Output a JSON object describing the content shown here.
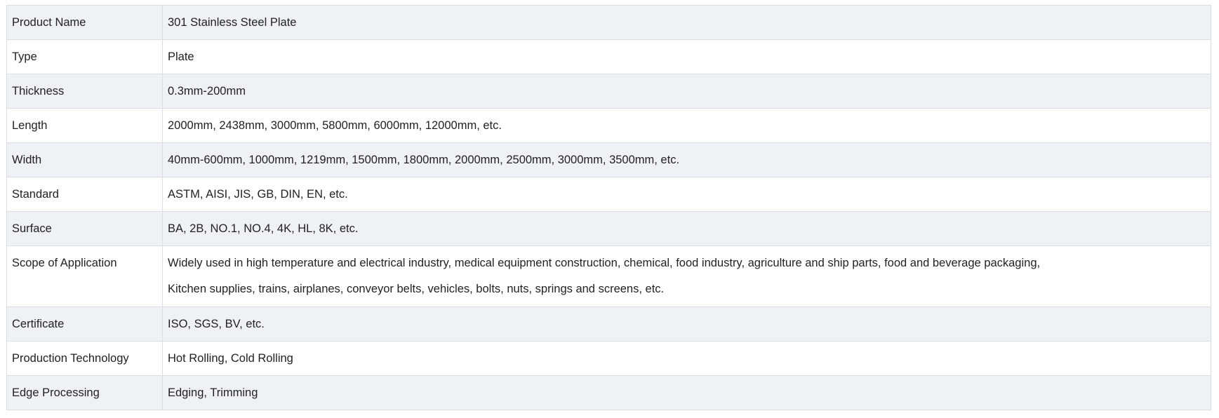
{
  "rows": [
    {
      "label": "Product Name",
      "value": "301 Stainless Steel Plate"
    },
    {
      "label": "Type",
      "value": "Plate"
    },
    {
      "label": "Thickness",
      "value": "0.3mm-200mm"
    },
    {
      "label": "Length",
      "value": "2000mm, 2438mm, 3000mm, 5800mm, 6000mm, 12000mm, etc."
    },
    {
      "label": "Width",
      "value": "40mm-600mm, 1000mm, 1219mm, 1500mm, 1800mm, 2000mm, 2500mm, 3000mm, 3500mm, etc."
    },
    {
      "label": "Standard",
      "value": "ASTM, AISI, JIS, GB, DIN, EN, etc."
    },
    {
      "label": "Surface",
      "value": "BA, 2B, NO.1, NO.4, 4K, HL, 8K, etc."
    },
    {
      "label": "Scope of Application",
      "lines": [
        "Widely used in high temperature and electrical industry, medical equipment construction, chemical, food industry, agriculture and ship parts, food and beverage packaging,",
        "Kitchen supplies, trains, airplanes, conveyor belts, vehicles, bolts, nuts, springs and screens, etc."
      ]
    },
    {
      "label": "Certificate",
      "value": "ISO, SGS, BV, etc."
    },
    {
      "label": "Production Technology",
      "value": "Hot Rolling, Cold Rolling"
    },
    {
      "label": "Edge Processing",
      "value": "Edging, Trimming"
    }
  ],
  "colors": {
    "row_alt": "#eef1f6",
    "border": "#dcdde0"
  }
}
